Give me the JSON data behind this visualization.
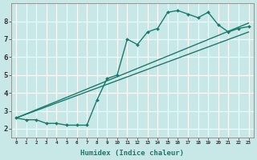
{
  "title": "",
  "xlabel": "Humidex (Indice chaleur)",
  "ylabel": "",
  "background_color": "#c8e8e8",
  "grid_color": "#ffffff",
  "line_color": "#1a7a6a",
  "xlim": [
    -0.5,
    23.5
  ],
  "ylim": [
    1.5,
    9.0
  ],
  "xtick_labels": [
    "0",
    "1",
    "2",
    "3",
    "4",
    "5",
    "6",
    "7",
    "8",
    "9",
    "10",
    "11",
    "12",
    "13",
    "14",
    "15",
    "16",
    "17",
    "18",
    "19",
    "20",
    "21",
    "22",
    "23"
  ],
  "yticks": [
    2,
    3,
    4,
    5,
    6,
    7,
    8
  ],
  "series": [
    {
      "x": [
        0,
        1,
        2,
        3,
        4,
        5,
        6,
        7,
        8,
        9,
        10,
        11,
        12,
        13,
        14,
        15,
        16,
        17,
        18,
        19,
        20,
        21,
        22,
        23
      ],
      "y": [
        2.6,
        2.5,
        2.5,
        2.3,
        2.3,
        2.2,
        2.2,
        2.2,
        3.6,
        4.8,
        5.0,
        7.0,
        6.7,
        7.4,
        7.6,
        8.5,
        8.6,
        8.4,
        8.2,
        8.5,
        7.8,
        7.4,
        7.6,
        7.7
      ],
      "marker": "D",
      "markersize": 2.0,
      "linewidth": 1.0,
      "has_marker": true
    },
    {
      "x": [
        0,
        23
      ],
      "y": [
        2.6,
        7.9
      ],
      "marker": null,
      "markersize": 0,
      "linewidth": 1.0,
      "has_marker": false
    },
    {
      "x": [
        0,
        23
      ],
      "y": [
        2.6,
        7.4
      ],
      "marker": null,
      "markersize": 0,
      "linewidth": 1.0,
      "has_marker": false
    }
  ]
}
